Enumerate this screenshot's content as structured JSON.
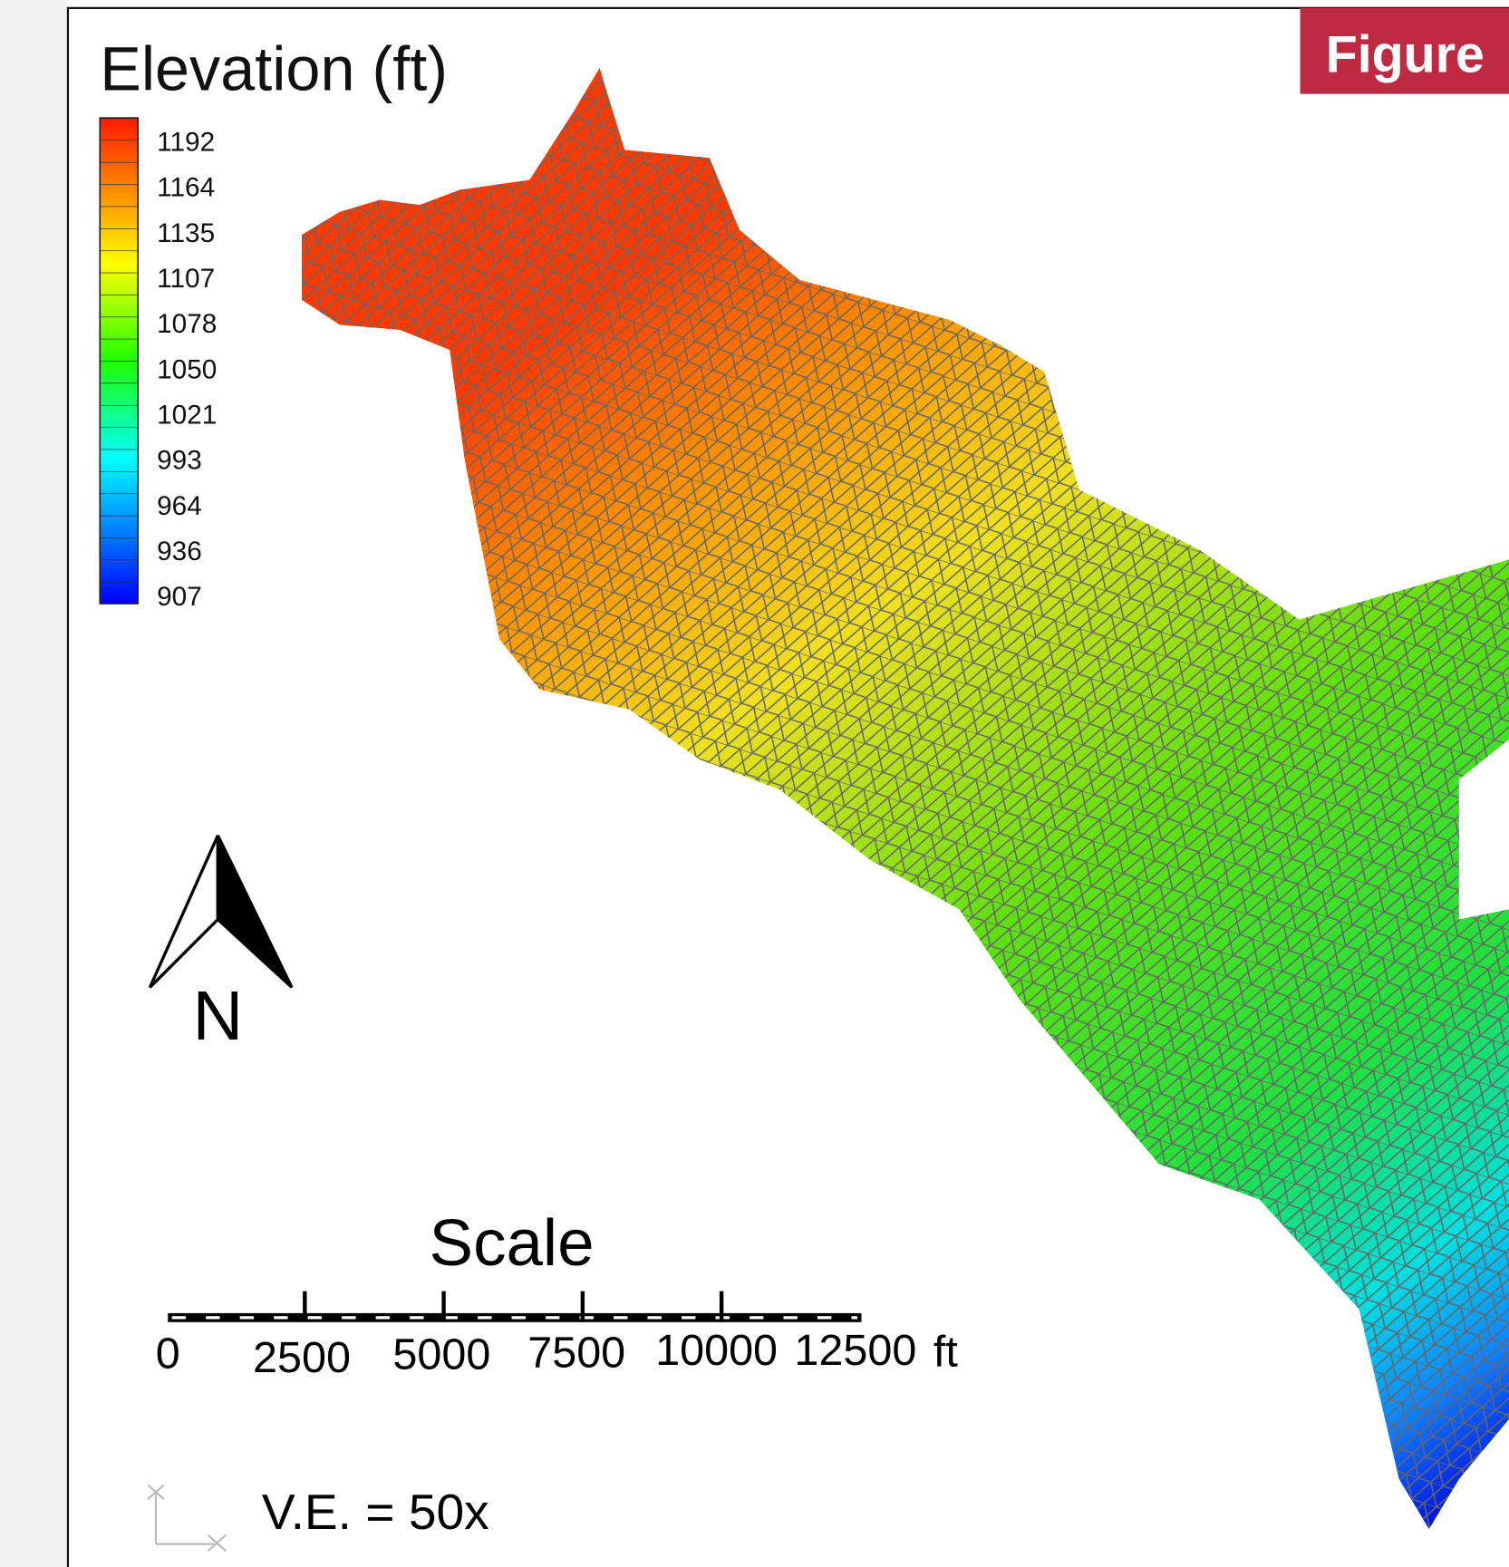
{
  "badge": "Figure",
  "legend": {
    "title": "Elevation (ft)",
    "labels": [
      1192,
      1164,
      1135,
      1107,
      1078,
      1050,
      1021,
      993,
      964,
      936,
      907
    ]
  },
  "north": "N",
  "scale": {
    "title": "Scale",
    "labels": [
      0,
      2500,
      5000,
      7500,
      10000,
      12500
    ],
    "unit": "ft"
  },
  "vertical_exaggeration": "V.E. = 50x"
}
